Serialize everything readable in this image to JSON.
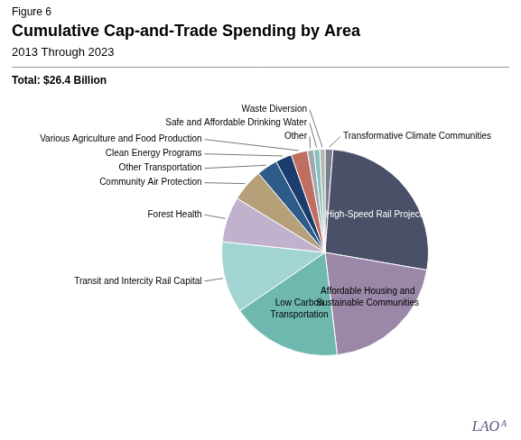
{
  "chart_data": {
    "type": "pie",
    "title": "Cumulative Cap-and-Trade Spending by Area",
    "subtitle": "2013 Through 2023",
    "categories": [
      "Transformative Climate Communities",
      "High-Speed Rail Project",
      "Affordable Housing and\nSustainable Communities",
      "Low Carbon\nTransportation",
      "Transit and Intercity Rail Capital",
      "Forest Health",
      "Community Air Protection",
      "Other Transportation",
      "Clean Energy Programs",
      "Various Agriculture and Food Production",
      "Other",
      "Safe and Affordable Drinking Water",
      "Waste Diversion"
    ],
    "values": [
      1.2,
      26.0,
      20.0,
      17.0,
      11.0,
      7.0,
      5.0,
      3.2,
      2.5,
      2.5,
      1.0,
      0.9,
      0.8
    ],
    "colors": [
      "#7a7f8e",
      "#4a5068",
      "#9b87a8",
      "#6eb8b0",
      "#a2d4d4",
      "#c0b2cc",
      "#b5a07a",
      "#2e5c88",
      "#1c3c6e",
      "#bf6e60",
      "#9fa8b0",
      "#88bfbf",
      "#b0b8b0"
    ],
    "annotations": [
      "Figure 6",
      "Total: $26.4 Billion",
      "LAO",
      "A"
    ]
  }
}
